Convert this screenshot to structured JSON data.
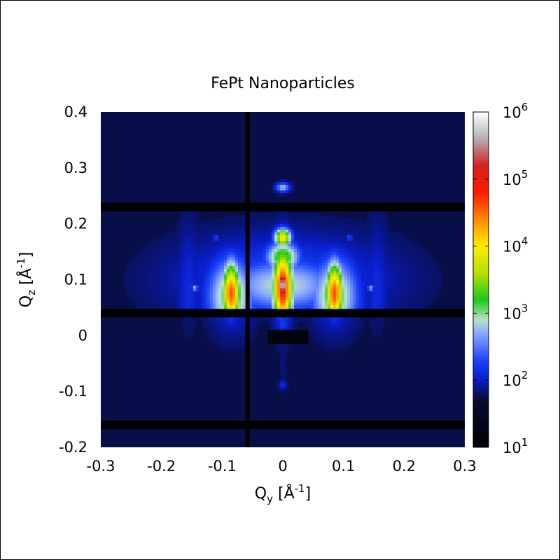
{
  "chart_data": {
    "type": "heatmap",
    "title": "FePt Nanoparticles",
    "xlabel": {
      "main": "Q",
      "sub": "y",
      "unit": "[Å",
      "exp": "-1",
      "close": "]"
    },
    "ylabel": {
      "main": "Q",
      "sub": "z",
      "unit": "[Å",
      "exp": "-1",
      "close": "]"
    },
    "xlim": [
      -0.3,
      0.3
    ],
    "ylim": [
      -0.2,
      0.4
    ],
    "x_ticks": [
      {
        "value": -0.3,
        "label": "-0.3"
      },
      {
        "value": -0.2,
        "label": "-0.2"
      },
      {
        "value": -0.1,
        "label": "-0.1"
      },
      {
        "value": 0,
        "label": "0"
      },
      {
        "value": 0.1,
        "label": "0.1"
      },
      {
        "value": 0.2,
        "label": "0.2"
      },
      {
        "value": 0.3,
        "label": "0.3"
      }
    ],
    "y_ticks": [
      {
        "value": -0.2,
        "label": "-0.2"
      },
      {
        "value": -0.1,
        "label": "-0.1"
      },
      {
        "value": 0,
        "label": "0"
      },
      {
        "value": 0.1,
        "label": "0.1"
      },
      {
        "value": 0.2,
        "label": "0.2"
      },
      {
        "value": 0.3,
        "label": "0.3"
      },
      {
        "value": 0.4,
        "label": "0.4"
      }
    ],
    "colorbar": {
      "scale": "log",
      "range_exponents": [
        1,
        6
      ],
      "ticks": [
        {
          "base": "10",
          "exp": "1",
          "value": 1
        },
        {
          "base": "10",
          "exp": "2",
          "value": 2
        },
        {
          "base": "10",
          "exp": "3",
          "value": 3
        },
        {
          "base": "10",
          "exp": "4",
          "value": 4
        },
        {
          "base": "10",
          "exp": "5",
          "value": 5
        },
        {
          "base": "10",
          "exp": "6",
          "value": 6
        }
      ],
      "stops": [
        {
          "value": 1.0,
          "color": "#000000"
        },
        {
          "value": 1.7,
          "color": "#080c2e"
        },
        {
          "value": 2.0,
          "color": "#0a1cc8"
        },
        {
          "value": 2.3,
          "color": "#1a44ff"
        },
        {
          "value": 2.7,
          "color": "#8aa8ff"
        },
        {
          "value": 2.9,
          "color": "#b9e1c8"
        },
        {
          "value": 3.2,
          "color": "#1cc81c"
        },
        {
          "value": 3.6,
          "color": "#b8e000"
        },
        {
          "value": 4.0,
          "color": "#ffee00"
        },
        {
          "value": 4.4,
          "color": "#ff8a00"
        },
        {
          "value": 4.8,
          "color": "#ff1a00"
        },
        {
          "value": 5.2,
          "color": "#d42020"
        },
        {
          "value": 5.6,
          "color": "#b0b0b0"
        },
        {
          "value": 6.0,
          "color": "#ffffff"
        }
      ]
    },
    "background_level": 1.75,
    "features": [
      {
        "kind": "halo",
        "qy": 0.0,
        "qz": 0.1,
        "sy": 0.12,
        "sz": 0.055,
        "level": 2.3
      },
      {
        "kind": "halo",
        "qy": 0.0,
        "qz": 0.09,
        "sy": 0.07,
        "sz": 0.035,
        "level": 2.9
      },
      {
        "kind": "spot",
        "qy": 0.0,
        "qz": 0.085,
        "sy": 0.012,
        "sz": 0.05,
        "level": 4.9
      },
      {
        "kind": "spot",
        "qy": 0.0,
        "qz": 0.09,
        "sy": 0.007,
        "sz": 0.02,
        "level": 5.8
      },
      {
        "kind": "spot",
        "qy": 0.0,
        "qz": 0.175,
        "sy": 0.01,
        "sz": 0.012,
        "level": 4.0
      },
      {
        "kind": "spot",
        "qy": 0.0,
        "qz": 0.14,
        "sy": 0.02,
        "sz": 0.02,
        "level": 3.4
      },
      {
        "kind": "spot",
        "qy": -0.085,
        "qz": 0.075,
        "sy": 0.011,
        "sz": 0.04,
        "level": 4.6
      },
      {
        "kind": "spot",
        "qy": 0.085,
        "qz": 0.075,
        "sy": 0.011,
        "sz": 0.04,
        "level": 4.6
      },
      {
        "kind": "spot",
        "qy": -0.085,
        "qz": 0.07,
        "sy": 0.028,
        "sz": 0.05,
        "level": 3.2
      },
      {
        "kind": "spot",
        "qy": 0.085,
        "qz": 0.07,
        "sy": 0.028,
        "sz": 0.05,
        "level": 3.2
      },
      {
        "kind": "spot",
        "qy": 0.0,
        "qz": 0.265,
        "sy": 0.008,
        "sz": 0.006,
        "level": 2.8
      },
      {
        "kind": "spot",
        "qy": 0.0,
        "qz": -0.088,
        "sy": 0.005,
        "sz": 0.006,
        "level": 3.2
      },
      {
        "kind": "spot",
        "qy": -0.145,
        "qz": 0.085,
        "sy": 0.004,
        "sz": 0.004,
        "level": 2.8
      },
      {
        "kind": "spot",
        "qy": 0.145,
        "qz": 0.085,
        "sy": 0.004,
        "sz": 0.004,
        "level": 2.8
      },
      {
        "kind": "spot",
        "qy": -0.155,
        "qz": 0.08,
        "sy": 0.015,
        "sz": 0.08,
        "level": 2.1
      },
      {
        "kind": "spot",
        "qy": 0.155,
        "qz": 0.08,
        "sy": 0.015,
        "sz": 0.08,
        "level": 2.1
      },
      {
        "kind": "spot",
        "qy": -0.11,
        "qz": 0.175,
        "sy": 0.004,
        "sz": 0.004,
        "level": 2.3
      },
      {
        "kind": "spot",
        "qy": 0.11,
        "qz": 0.175,
        "sy": 0.004,
        "sz": 0.004,
        "level": 2.3
      },
      {
        "kind": "spot",
        "qy": 0.0,
        "qz": 0.02,
        "sy": 0.008,
        "sz": 0.01,
        "level": 3.6
      },
      {
        "kind": "spot",
        "qy": 0.0,
        "qz": -0.05,
        "sy": 0.006,
        "sz": 0.03,
        "level": 2.1
      }
    ],
    "gaps": {
      "horizontal_qz": [
        0.23,
        0.04,
        -0.16
      ],
      "vertical_qy": [
        -0.058
      ]
    },
    "beamstop": {
      "qy_range": [
        -0.025,
        0.042
      ],
      "qz_range": [
        -0.015,
        0.01
      ]
    }
  }
}
